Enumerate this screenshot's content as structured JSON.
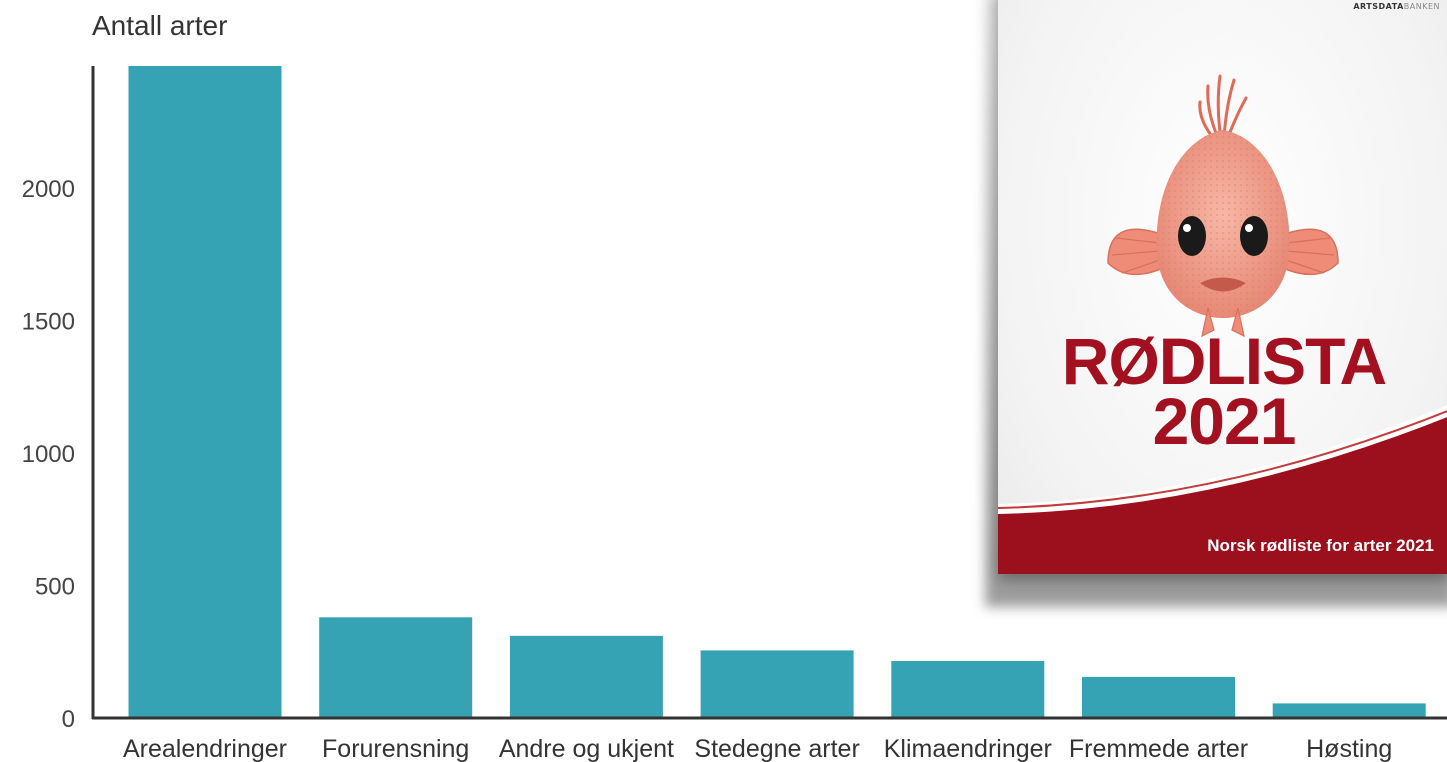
{
  "chart_data": {
    "type": "bar",
    "ylabel": "Antall arter",
    "categories": [
      "Arealendringer",
      "Forurensning",
      "Andre og ukjent",
      "Stedegne arter",
      "Klimaendringer",
      "Fremmede arter",
      "Høsting"
    ],
    "values": [
      2460,
      380,
      310,
      255,
      215,
      155,
      55
    ],
    "ylim": [
      0,
      2460
    ],
    "yticks": [
      0,
      500,
      1000,
      1500,
      2000
    ],
    "grid": false,
    "bar_color": "#35a3b3"
  },
  "cover": {
    "publisher_bold": "ARTSDATA",
    "publisher_light": "BANKEN",
    "title_line1": "RØDLISTA",
    "title_line2": "2021",
    "subtitle": "Norsk rødliste for arter 2021",
    "title_color": "#a3101f",
    "band_color": "#9c0f1c",
    "fish_color": "#f2a08e"
  }
}
